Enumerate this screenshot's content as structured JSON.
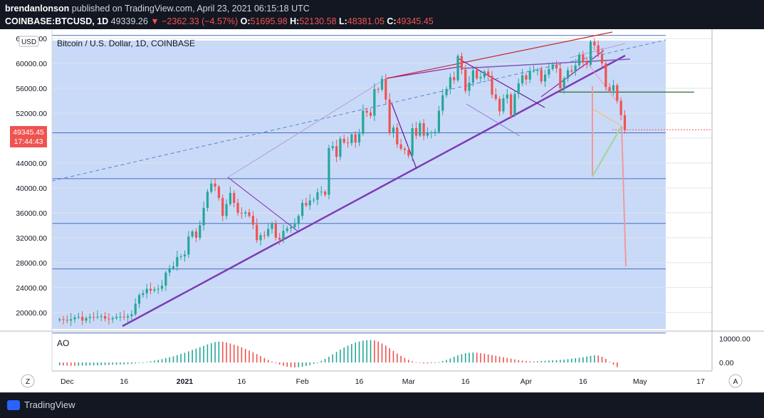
{
  "header": {
    "publisher": "brendanlonson",
    "published_text": " published on TradingView.com, April 23, 2021 06:15:18 UTC",
    "symbol": "COINBASE:BTCUSD, 1D",
    "last": "49339.26",
    "change": "▼ −2362.33 (−4.57%)",
    "o_label": "O:",
    "o_value": "51695.98",
    "h_label": "H:",
    "h_value": "52130.58",
    "l_label": "L:",
    "l_value": "48381.05",
    "c_label": "C:",
    "c_value": "49345.45"
  },
  "chart": {
    "title": "Bitcoin / U.S. Dollar, 1D, COINBASE",
    "currency_badge": "USD",
    "price_badge": "49345.45",
    "countdown_badge": "17:44:43",
    "indicator_label": "AO",
    "scale_left_button": "Z",
    "scale_right_button": "A"
  },
  "footer": {
    "brand": "TradingView"
  },
  "colors": {
    "background": "#131722",
    "up": "#26a69a",
    "down": "#ef5350",
    "ao_up": "#26a69a",
    "ao_down": "#ef5350",
    "shaded_region": "#c9daf8",
    "trendline": "#7e3ab7",
    "accent": "#2962ff"
  },
  "chart_data": {
    "type": "candlestick",
    "title": "Bitcoin / U.S. Dollar, 1D, COINBASE",
    "y_axis": {
      "ticks": [
        20000,
        24000,
        28000,
        32000,
        36000,
        40000,
        44000,
        48000,
        52000,
        56000,
        60000,
        64000
      ],
      "tick_labels": [
        "20000.00",
        "24000.00",
        "28000.00",
        "32000.00",
        "36000.00",
        "40000.00",
        "44000.00",
        "",
        "52000.00",
        "56000.00",
        "60000.00",
        "64000.00"
      ],
      "range": [
        17000,
        65500
      ]
    },
    "x_axis": {
      "tick_labels": [
        "Dec",
        "16",
        "2021",
        "16",
        "Feb",
        "16",
        "Mar",
        "16",
        "Apr",
        "16",
        "May",
        "17"
      ],
      "range": [
        "2020-11-27",
        "2021-05-20"
      ]
    },
    "horizontal_lines": [
      64500,
      48850,
      41500,
      34300,
      27000,
      16700
    ],
    "closes": [
      18900,
      18800,
      18700,
      18900,
      19200,
      19300,
      18700,
      19100,
      19300,
      19200,
      19300,
      19400,
      19000,
      18900,
      19100,
      19300,
      19300,
      19200,
      19400,
      19700,
      21400,
      22800,
      23100,
      23800,
      23500,
      23700,
      23800,
      24300,
      26400,
      27100,
      27400,
      28900,
      29000,
      29300,
      32200,
      33000,
      32000,
      34000,
      36800,
      39400,
      40700,
      40200,
      38400,
      35500,
      37400,
      39200,
      37600,
      36000,
      35900,
      36100,
      35500,
      34100,
      31600,
      32400,
      32300,
      33400,
      34300,
      32000,
      31700,
      33100,
      33500,
      33700,
      34200,
      35500,
      37600,
      37200,
      38000,
      38100,
      39300,
      39400,
      38900,
      46400,
      46700,
      45000,
      47900,
      47300,
      47200,
      48600,
      47300,
      48700,
      52400,
      52100,
      51600,
      55900,
      55800,
      57500,
      54200,
      48900,
      49700,
      47000,
      46300,
      46100,
      45200,
      49600,
      48400,
      50400,
      48400,
      48800,
      48900,
      49000,
      52400,
      54900,
      55900,
      57800,
      57300,
      61200,
      59000,
      55600,
      56900,
      58900,
      57600,
      57800,
      58700,
      58000,
      55000,
      54300,
      52300,
      54400,
      55000,
      51700,
      55100,
      56800,
      58100,
      57400,
      58800,
      58800,
      59000,
      57100,
      58200,
      59100,
      59800,
      59200,
      56000,
      57600,
      58900,
      58700,
      59700,
      61400,
      60200,
      59800,
      63500,
      62900,
      61500,
      60000,
      56200,
      55600,
      56500,
      54000,
      51700,
      49300
    ],
    "series": [
      {
        "name": "AO",
        "values": [
          -1200,
          -1300,
          -1350,
          -1400,
          -1420,
          -1400,
          -1350,
          -1300,
          -1250,
          -1200,
          -1200,
          -1150,
          -1100,
          -1000,
          -950,
          -900,
          -850,
          -800,
          -700,
          -600,
          -400,
          -200,
          0,
          250,
          500,
          800,
          1100,
          1400,
          1800,
          2200,
          2600,
          3100,
          3600,
          4100,
          4700,
          5300,
          5800,
          6400,
          7000,
          7600,
          8100,
          8600,
          8800,
          8700,
          8400,
          8000,
          7500,
          7000,
          6400,
          5700,
          5000,
          4300,
          3500,
          2700,
          1900,
          1100,
          400,
          -300,
          -900,
          -1400,
          -1800,
          -2000,
          -2100,
          -2000,
          -1800,
          -1500,
          -1100,
          -600,
          0,
          700,
          1500,
          2400,
          3400,
          4400,
          5400,
          6300,
          7100,
          7800,
          8400,
          8800,
          9200,
          9400,
          9500,
          9300,
          8800,
          8000,
          7100,
          6000,
          4900,
          3800,
          2800,
          1900,
          1100,
          500,
          100,
          -200,
          -400,
          -450,
          -300,
          -100,
          200,
          600,
          1100,
          1700,
          2400,
          3000,
          3500,
          3900,
          4100,
          4200,
          4100,
          3900,
          3700,
          3400,
          3100,
          2800,
          2500,
          2200,
          1900,
          1600,
          1300,
          1000,
          800,
          600,
          500,
          450,
          500,
          600,
          700,
          800,
          900,
          1000,
          1100,
          1200,
          1400,
          1600,
          1800,
          2000,
          2200,
          2500,
          2800,
          3000,
          2900,
          2400,
          1500,
          300,
          -900,
          -2000
        ]
      }
    ],
    "ao_axis": {
      "tick_labels": [
        "10000.00",
        "0.00"
      ],
      "ticks": [
        10000,
        0
      ]
    }
  }
}
